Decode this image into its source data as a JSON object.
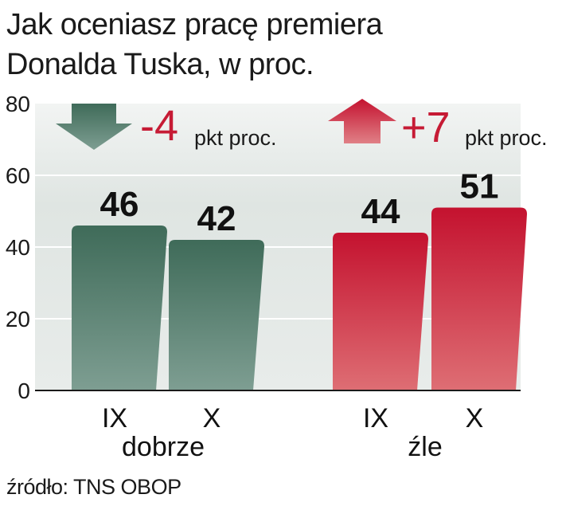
{
  "title_lines": [
    "Jak oceniasz pracę premiera",
    "Donalda Tuska, w proc."
  ],
  "source": "źródło: TNS OBOP",
  "chart_data": {
    "type": "bar",
    "title": "Jak oceniasz pracę premiera Donalda Tuska, w proc.",
    "ylim": [
      0,
      80
    ],
    "yticks": [
      0,
      20,
      40,
      60,
      80
    ],
    "grid": true,
    "groups": [
      {
        "label": "dobrze",
        "color": "#4e7a68",
        "categories": [
          "IX",
          "X"
        ],
        "values": [
          46,
          42
        ],
        "change_value": "-4",
        "change_unit": "pkt proc.",
        "change_direction": "down"
      },
      {
        "label": "źle",
        "color": "#c61b35",
        "categories": [
          "IX",
          "X"
        ],
        "values": [
          44,
          51
        ],
        "change_value": "+7",
        "change_unit": "pkt proc.",
        "change_direction": "up"
      }
    ]
  },
  "colors": {
    "panel_bg": "#dfe5e2",
    "gridline": "#ffffff",
    "change_text": "#c61b35",
    "axis": "#1a1a1a"
  }
}
